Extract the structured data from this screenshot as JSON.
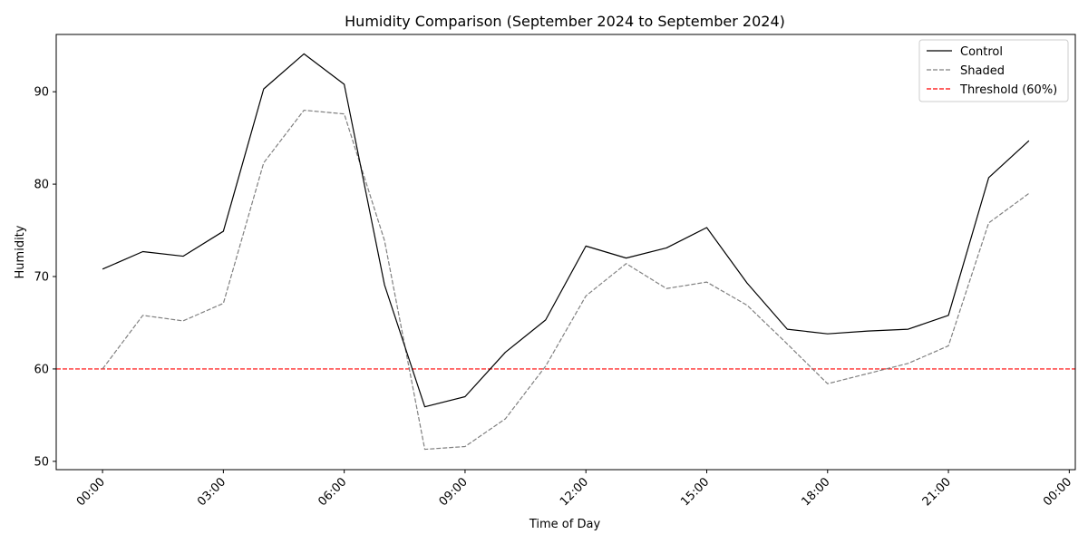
{
  "chart_data": {
    "type": "line",
    "title": "Humidity Comparison (September 2024 to September 2024)",
    "xlabel": "Time of Day",
    "ylabel": "Humidity",
    "x": [
      "00:00",
      "01:00",
      "02:00",
      "03:00",
      "04:00",
      "05:00",
      "06:00",
      "07:00",
      "08:00",
      "09:00",
      "10:00",
      "11:00",
      "12:00",
      "13:00",
      "14:00",
      "15:00",
      "16:00",
      "17:00",
      "18:00",
      "19:00",
      "20:00",
      "21:00",
      "22:00",
      "23:00"
    ],
    "xticks": [
      "00:00",
      "03:00",
      "06:00",
      "09:00",
      "12:00",
      "15:00",
      "18:00",
      "21:00",
      "00:00"
    ],
    "yticks": [
      50,
      60,
      70,
      80,
      90
    ],
    "xlim": [
      -1.15,
      24.15
    ],
    "ylim": [
      49.1,
      96.2
    ],
    "grid": false,
    "legend_position": "top-right",
    "series": [
      {
        "name": "Control",
        "color": "#000000",
        "style": "solid",
        "values": [
          70.8,
          72.7,
          72.2,
          74.9,
          90.3,
          94.1,
          90.8,
          69.1,
          55.9,
          57.0,
          61.8,
          65.3,
          73.3,
          72.0,
          73.1,
          75.3,
          69.3,
          64.3,
          63.8,
          64.1,
          64.3,
          65.8,
          80.7,
          84.7
        ]
      },
      {
        "name": "Shaded",
        "color": "#808080",
        "style": "dashed",
        "values": [
          60.0,
          65.8,
          65.2,
          67.1,
          82.3,
          88.0,
          87.6,
          73.9,
          51.3,
          51.6,
          54.6,
          60.3,
          67.9,
          71.4,
          68.7,
          69.4,
          66.9,
          62.7,
          58.4,
          59.5,
          60.6,
          62.5,
          75.8,
          79.0
        ]
      }
    ],
    "threshold": {
      "name": "Threshold (60%)",
      "value": 60,
      "color": "#ff0000",
      "style": "dashed"
    }
  }
}
